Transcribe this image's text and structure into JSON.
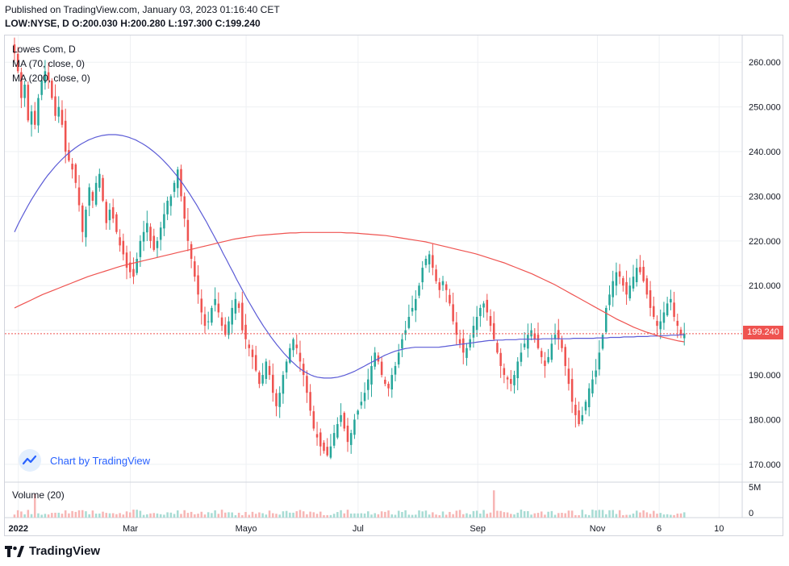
{
  "header": {
    "published": "Published on TradingView.com, January 03, 2023 01:16:40 CET",
    "symbol_line": {
      "symbol": "LOW:NYSE, D",
      "open": "O:200.030",
      "high": "H:200.280",
      "low": "L:197.300",
      "close": "C:199.240"
    }
  },
  "legend": {
    "title": "Lowes Com, D",
    "ma70": "MA (70, close, 0)",
    "ma200": "MA (200, close, 0)"
  },
  "volume_label": "Volume (20)",
  "watermark": "Chart by TradingView",
  "footer": "TradingView",
  "last_price": "199.240",
  "colors": {
    "up": "#26a69a",
    "down": "#ef5350",
    "ma70": "#5b5bd6",
    "ma200": "#ef5350",
    "grid": "#eef0f3",
    "accent": "#2962ff"
  },
  "chart_data": {
    "type": "candlestick",
    "title": "Lowes Com, D",
    "ylim": [
      166,
      266
    ],
    "y_ticks": [
      170,
      180,
      190,
      200,
      210,
      220,
      230,
      240,
      250,
      260
    ],
    "y_tick_labels": [
      "170.000",
      "180.000",
      "190.000",
      "200.000",
      "210.000",
      "220.000",
      "230.000",
      "240.000",
      "250.000",
      "260.000"
    ],
    "x_tick_labels": [
      "2022",
      "Mar",
      "Mayo",
      "Jul",
      "Sep",
      "Nov",
      "6",
      "10"
    ],
    "x_tick_days": [
      7,
      65,
      125,
      183,
      245,
      307,
      339,
      370
    ],
    "volume_ticks": [
      "5M",
      "0"
    ],
    "closes": [
      262,
      258,
      252,
      255,
      247,
      249,
      246,
      252,
      256,
      258,
      256,
      252,
      248,
      250,
      246,
      240,
      238,
      236,
      233,
      228,
      222,
      227,
      232,
      229,
      233,
      235,
      229,
      224,
      227,
      225,
      222,
      219,
      217,
      214,
      213,
      212,
      216,
      220,
      222,
      224,
      220,
      218,
      220,
      223,
      226,
      229,
      230,
      233,
      236,
      230,
      225,
      220,
      216,
      212,
      208,
      204,
      201,
      202,
      205,
      207,
      204,
      201,
      199,
      202,
      205,
      207,
      205,
      200,
      198,
      196,
      194,
      191,
      188,
      190,
      193,
      190,
      186,
      183,
      186,
      190,
      193,
      196,
      198,
      196,
      193,
      190,
      186,
      182,
      178,
      176,
      174,
      173,
      172,
      174,
      177,
      179,
      181,
      178,
      175,
      177,
      180,
      182,
      184,
      186,
      189,
      192,
      195,
      193,
      190,
      188,
      187,
      190,
      192,
      195,
      198,
      200,
      203,
      205,
      207,
      210,
      214,
      216,
      217,
      214,
      211,
      209,
      211,
      209,
      206,
      202,
      199,
      197,
      195,
      196,
      198,
      201,
      203,
      205,
      206,
      204,
      201,
      198,
      195,
      192,
      190,
      189,
      188,
      190,
      193,
      195,
      197,
      199,
      200,
      198,
      196,
      194,
      192,
      194,
      197,
      199,
      198,
      196,
      192,
      188,
      184,
      181,
      179,
      181,
      184,
      187,
      189,
      191,
      195,
      199,
      205,
      208,
      211,
      213,
      212,
      210,
      208,
      210,
      212,
      214,
      213,
      211,
      208,
      205,
      203,
      201,
      202,
      204,
      206,
      207,
      203,
      201,
      199,
      199.24
    ],
    "ma70": [
      222.0,
      223.6,
      225.1,
      226.5,
      227.9,
      229.2,
      230.4,
      231.6,
      232.7,
      233.8,
      234.8,
      235.7,
      236.6,
      237.4,
      238.2,
      238.9,
      239.6,
      240.2,
      240.8,
      241.3,
      241.8,
      242.2,
      242.6,
      242.9,
      243.2,
      243.4,
      243.6,
      243.7,
      243.8,
      243.8,
      243.8,
      243.7,
      243.6,
      243.4,
      243.2,
      242.9,
      242.6,
      242.2,
      241.8,
      241.3,
      240.8,
      240.2,
      239.6,
      238.9,
      238.2,
      237.4,
      236.6,
      235.7,
      234.8,
      233.8,
      232.8,
      231.7,
      230.6,
      229.4,
      228.2,
      226.9,
      225.6,
      224.3,
      222.9,
      221.5,
      220.1,
      218.7,
      217.2,
      215.8,
      214.3,
      212.9,
      211.4,
      210.0,
      208.6,
      207.2,
      205.9,
      204.6,
      203.3,
      202.1,
      200.9,
      199.8,
      198.7,
      197.7,
      196.7,
      195.8,
      194.9,
      194.1,
      193.3,
      192.6,
      191.9,
      191.3,
      190.8,
      190.4,
      190.0,
      189.7,
      189.5,
      189.4,
      189.3,
      189.3,
      189.3,
      189.4,
      189.5,
      189.7,
      189.9,
      190.2,
      190.5,
      190.8,
      191.2,
      191.6,
      192.0,
      192.4,
      192.8,
      193.2,
      193.6,
      194.0,
      194.4,
      194.7,
      195.0,
      195.3,
      195.5,
      195.7,
      195.9,
      196.0,
      196.1,
      196.2,
      196.2,
      196.2,
      196.2,
      196.2,
      196.2,
      196.2,
      196.2,
      196.3,
      196.4,
      196.5,
      196.6,
      196.7,
      196.8,
      196.9,
      197.0,
      197.1,
      197.2,
      197.3,
      197.4,
      197.5,
      197.6,
      197.7,
      197.7,
      197.8,
      197.8,
      197.8,
      197.9,
      197.9,
      197.9,
      197.9,
      198.0,
      198.0,
      198.0,
      198.0,
      198.0,
      198.0,
      198.0,
      198.1,
      198.1,
      198.1,
      198.1,
      198.1,
      198.1,
      198.1,
      198.1,
      198.1,
      198.2,
      198.2,
      198.2,
      198.2,
      198.2,
      198.2,
      198.2,
      198.3,
      198.3,
      198.3,
      198.3,
      198.4,
      198.4,
      198.4,
      198.4,
      198.5,
      198.5,
      198.5,
      198.5,
      198.6,
      198.6,
      198.6,
      198.6,
      198.7,
      198.7,
      198.7,
      198.8,
      198.8,
      198.8,
      198.9,
      198.9,
      198.9,
      199.0,
      199.0
    ],
    "ma200": [
      205.0,
      205.6,
      206.2,
      206.8,
      207.4,
      208.0,
      208.5,
      209.0,
      209.5,
      210.0,
      210.5,
      211.0,
      211.5,
      212.0,
      212.4,
      212.8,
      213.2,
      213.6,
      214.0,
      214.4,
      214.7,
      215.0,
      215.3,
      215.6,
      215.9,
      216.2,
      216.5,
      216.8,
      217.1,
      217.4,
      217.7,
      218.0,
      218.3,
      218.6,
      218.9,
      219.2,
      219.5,
      219.8,
      220.1,
      220.4,
      220.6,
      220.8,
      221.0,
      221.2,
      221.3,
      221.4,
      221.5,
      221.6,
      221.7,
      221.8,
      221.8,
      221.9,
      221.9,
      221.9,
      221.9,
      221.9,
      221.9,
      221.9,
      221.9,
      221.8,
      221.8,
      221.7,
      221.6,
      221.5,
      221.4,
      221.3,
      221.2,
      221.0,
      220.8,
      220.6,
      220.4,
      220.2,
      220.0,
      219.8,
      219.5,
      219.2,
      218.9,
      218.6,
      218.3,
      218.0,
      217.7,
      217.4,
      217.1,
      216.7,
      216.3,
      215.9,
      215.5,
      215.1,
      214.6,
      214.1,
      213.6,
      213.1,
      212.6,
      212.0,
      211.4,
      210.8,
      210.2,
      209.5,
      208.8,
      208.1,
      207.4,
      206.7,
      206.0,
      205.3,
      204.6,
      203.9,
      203.2,
      202.5,
      201.9,
      201.3,
      200.7,
      200.2,
      199.7,
      199.3,
      198.9,
      198.5,
      198.2,
      197.9,
      197.6,
      197.4
    ]
  }
}
